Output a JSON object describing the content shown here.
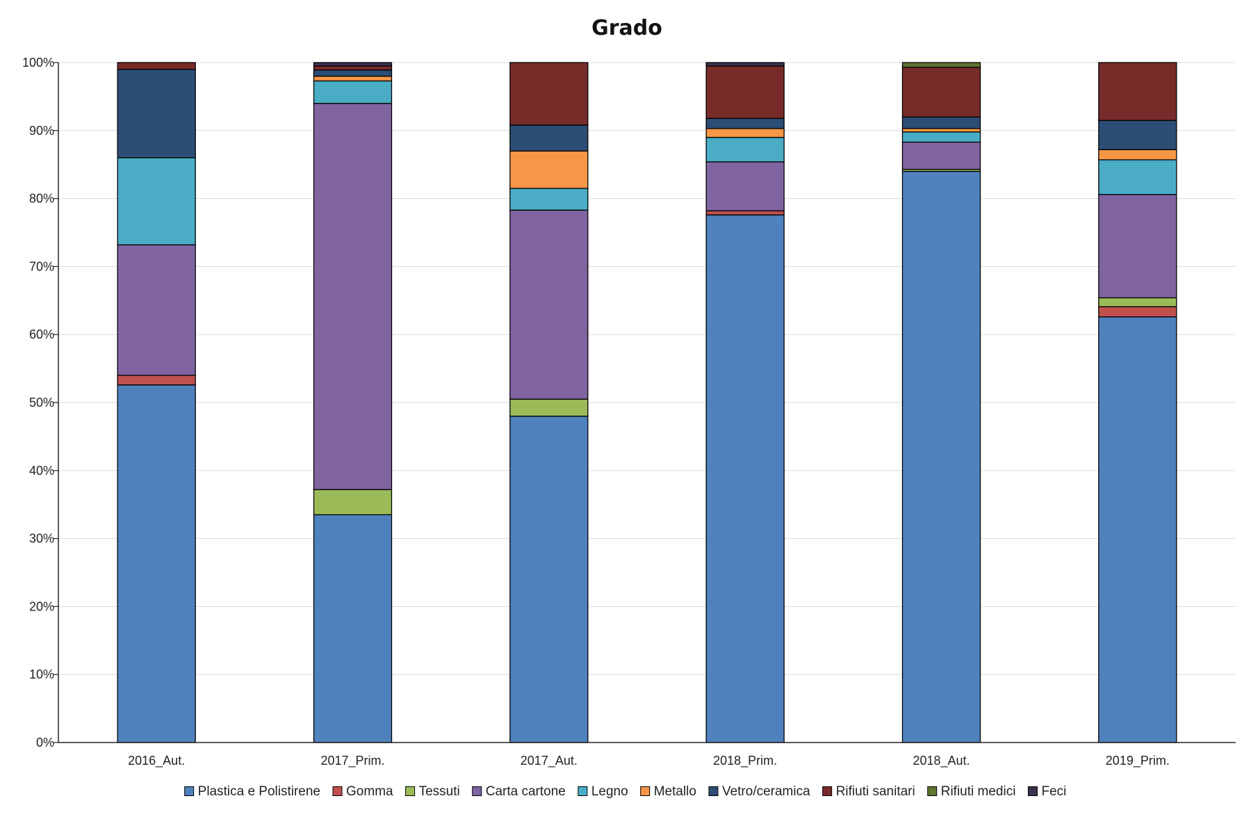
{
  "chart_data": {
    "type": "bar",
    "stacked": "percent",
    "title": "Grado",
    "xlabel": "",
    "ylabel": "",
    "ylim": [
      0,
      100
    ],
    "y_ticks": [
      "0%",
      "10%",
      "20%",
      "30%",
      "40%",
      "50%",
      "60%",
      "70%",
      "80%",
      "90%",
      "100%"
    ],
    "grid": true,
    "legend_position": "bottom",
    "categories": [
      "2016_Aut.",
      "2017_Prim.",
      "2017_Aut.",
      "2018_Prim.",
      "2018_Aut.",
      "2019_Prim."
    ],
    "series": [
      {
        "name": "Plastica e Polistirene",
        "color": "#4F81BD",
        "values": [
          52.6,
          33.5,
          48.0,
          77.6,
          84.0,
          62.6
        ]
      },
      {
        "name": "Gomma",
        "color": "#C0504D",
        "values": [
          1.4,
          0.0,
          0.0,
          0.6,
          0.0,
          1.5
        ]
      },
      {
        "name": "Tessuti",
        "color": "#9BBB59",
        "values": [
          0.0,
          3.7,
          2.5,
          0.0,
          0.3,
          1.3
        ]
      },
      {
        "name": "Carta cartone",
        "color": "#8064A2",
        "values": [
          19.2,
          56.8,
          27.8,
          7.2,
          4.0,
          15.2
        ]
      },
      {
        "name": "Legno",
        "color": "#4BACC6",
        "values": [
          12.8,
          3.3,
          3.2,
          3.6,
          1.5,
          5.1
        ]
      },
      {
        "name": "Metallo",
        "color": "#F79646",
        "values": [
          0.0,
          0.7,
          5.5,
          1.3,
          0.5,
          1.5
        ]
      },
      {
        "name": "Vetro/ceramica",
        "color": "#2C4D75",
        "values": [
          13.0,
          0.9,
          3.8,
          1.5,
          1.7,
          4.3
        ]
      },
      {
        "name": "Rifiuti sanitari",
        "color": "#772C2A",
        "values": [
          1.0,
          0.6,
          9.2,
          7.7,
          7.3,
          8.5
        ]
      },
      {
        "name": "Rifiuti medici",
        "color": "#5F7530",
        "values": [
          0.0,
          0.0,
          0.0,
          0.0,
          0.7,
          0.0
        ]
      },
      {
        "name": "Feci",
        "color": "#3F3151",
        "values": [
          0.0,
          0.5,
          0.0,
          0.5,
          0.0,
          0.0
        ]
      }
    ]
  }
}
